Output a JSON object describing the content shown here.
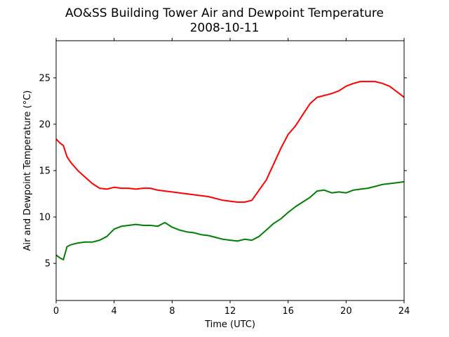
{
  "chart_data": {
    "type": "line",
    "title": "AO&SS Building Tower Air and Dewpoint Temperature",
    "subtitle": "2008-10-11",
    "xlabel": "Time (UTC)",
    "ylabel": "Air and Dewpoint Temperature (°C)",
    "xlim": [
      0,
      24
    ],
    "ylim": [
      1,
      29
    ],
    "xticks": [
      0,
      4,
      8,
      12,
      16,
      20,
      24
    ],
    "yticks": [
      5,
      10,
      15,
      20,
      25
    ],
    "grid": false,
    "legend": "none",
    "series": [
      {
        "color": "#ff0000",
        "x": [
          0,
          0.25,
          0.5,
          0.75,
          1,
          1.5,
          2,
          2.5,
          3,
          3.5,
          4,
          4.5,
          5,
          5.5,
          6,
          6.5,
          7,
          7.5,
          8,
          8.5,
          9,
          9.5,
          10,
          10.5,
          11,
          11.5,
          12,
          12.5,
          13,
          13.5,
          14,
          14.5,
          15,
          15.5,
          16,
          16.5,
          17,
          17.5,
          18,
          18.5,
          19,
          19.5,
          20,
          20.5,
          21,
          21.5,
          22,
          22.5,
          23,
          23.5,
          24
        ],
        "y": [
          18.4,
          18.0,
          17.7,
          16.5,
          15.9,
          15.0,
          14.3,
          13.6,
          13.1,
          13.0,
          13.2,
          13.1,
          13.1,
          13.0,
          13.1,
          13.1,
          12.9,
          12.8,
          12.7,
          12.6,
          12.5,
          12.4,
          12.3,
          12.2,
          12.0,
          11.8,
          11.7,
          11.6,
          11.6,
          11.8,
          12.9,
          14.0,
          15.7,
          17.4,
          18.9,
          19.8,
          21.0,
          22.2,
          22.9,
          23.1,
          23.3,
          23.6,
          24.1,
          24.4,
          24.6,
          24.6,
          24.6,
          24.4,
          24.1,
          23.5,
          22.9
        ]
      },
      {
        "color": "#008000",
        "x": [
          0,
          0.25,
          0.5,
          0.75,
          1,
          1.5,
          2,
          2.5,
          3,
          3.5,
          4,
          4.5,
          5,
          5.5,
          6,
          6.5,
          7,
          7.5,
          8,
          8.5,
          9,
          9.5,
          10,
          10.5,
          11,
          11.5,
          12,
          12.5,
          13,
          13.5,
          14,
          14.5,
          15,
          15.5,
          16,
          16.5,
          17,
          17.5,
          18,
          18.5,
          19,
          19.5,
          20,
          20.5,
          21,
          21.5,
          22,
          22.5,
          23,
          23.5,
          24
        ],
        "y": [
          5.9,
          5.6,
          5.4,
          6.8,
          7.0,
          7.2,
          7.3,
          7.3,
          7.5,
          7.9,
          8.7,
          9.0,
          9.1,
          9.2,
          9.1,
          9.1,
          9.0,
          9.4,
          8.9,
          8.6,
          8.4,
          8.3,
          8.1,
          8.0,
          7.8,
          7.6,
          7.5,
          7.4,
          7.6,
          7.5,
          7.9,
          8.6,
          9.3,
          9.8,
          10.5,
          11.1,
          11.6,
          12.1,
          12.8,
          12.9,
          12.6,
          12.7,
          12.6,
          12.9,
          13.0,
          13.1,
          13.3,
          13.5,
          13.6,
          13.7,
          13.8
        ]
      }
    ]
  }
}
